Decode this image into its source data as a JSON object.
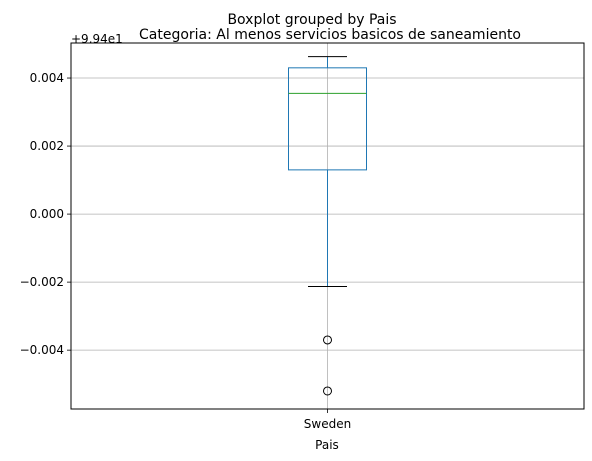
{
  "chart_data": {
    "type": "boxplot",
    "suptitle": "Boxplot grouped by Pais",
    "title": "Categoria: Al menos servicios basicos de saneamiento",
    "xlabel": "Pais",
    "ylabel": "",
    "offset_label": "+9.94e1",
    "categories": [
      "Sweden"
    ],
    "boxes": [
      {
        "category": "Sweden",
        "whisker_low": -0.00213,
        "q1": 0.0013,
        "median": 0.00355,
        "q3": 0.0043,
        "whisker_high": 0.00463,
        "outliers": [
          -0.0037,
          -0.0052
        ]
      }
    ],
    "ylim": [
      -0.00573,
      0.00503
    ],
    "yticks": [
      -0.004,
      -0.002,
      0.0,
      0.002,
      0.004
    ],
    "ytick_labels": [
      "−0.004",
      "−0.002",
      "0.000",
      "0.002",
      "0.004"
    ],
    "grid": true,
    "colors": {
      "box": "#1f77b4",
      "median": "#2ca02c",
      "whisker": "#000000",
      "grid": "#b0b0b0"
    }
  }
}
